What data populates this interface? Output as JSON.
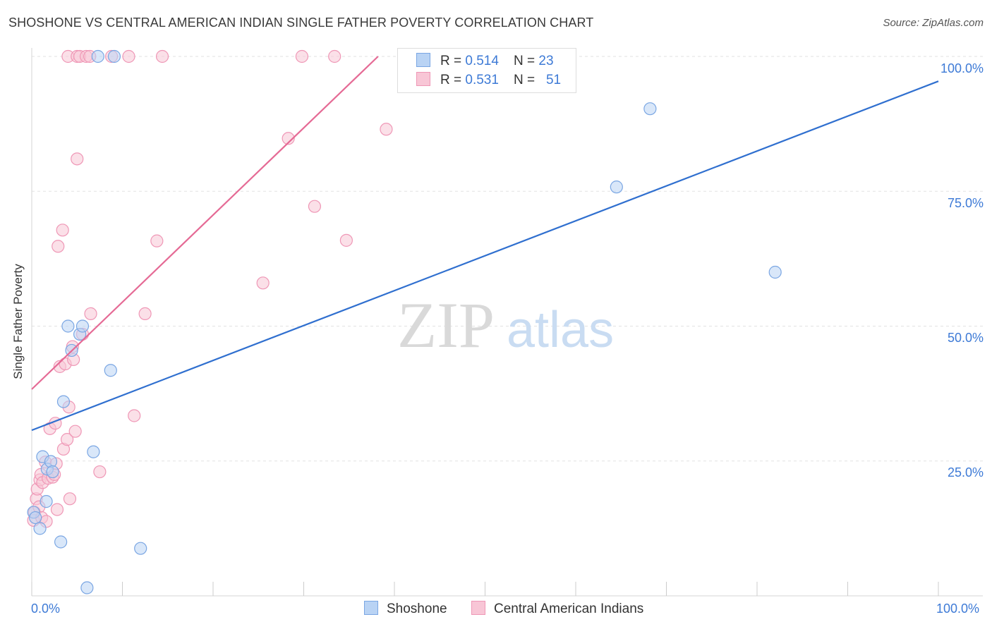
{
  "header": {
    "title": "SHOSHONE VS CENTRAL AMERICAN INDIAN SINGLE FATHER POVERTY CORRELATION CHART",
    "source": "Source: ZipAtlas.com"
  },
  "watermark": {
    "zip": "ZIP",
    "atlas": "atlas"
  },
  "legend": {
    "rows": [
      {
        "r_label": "R = ",
        "r_value": "0.514",
        "n_label": "N = ",
        "n_value": "23"
      },
      {
        "r_label": "R = ",
        "r_value": "0.531",
        "n_label": "N = ",
        "n_value": "51"
      }
    ]
  },
  "colors": {
    "shoshone_fill": "#b9d3f4",
    "shoshone_stroke": "#7aa6e3",
    "shoshone_line": "#2f6fcf",
    "cai_fill": "#f8c6d6",
    "cai_stroke": "#ef97b6",
    "cai_line": "#e56a95",
    "axis_text": "#3d7ad6",
    "grid": "#e2e2e2"
  },
  "chart_data": {
    "type": "scatter",
    "title": "SHOSHONE VS CENTRAL AMERICAN INDIAN SINGLE FATHER POVERTY CORRELATION CHART",
    "xlabel": "",
    "ylabel": "Single Father Poverty",
    "xlim": [
      0,
      100
    ],
    "ylim": [
      0,
      100
    ],
    "x_tick_labels": [
      "0.0%",
      "100.0%"
    ],
    "y_tick_labels": [
      "25.0%",
      "50.0%",
      "75.0%",
      "100.0%"
    ],
    "y_ticks": [
      25,
      50,
      75,
      100
    ],
    "grid": true,
    "legend_placement": "top-center",
    "series": [
      {
        "name": "Shoshone",
        "r": 0.514,
        "n": 23,
        "points": [
          [
            0.2,
            15.5
          ],
          [
            0.4,
            14.5
          ],
          [
            0.9,
            12.5
          ],
          [
            1.2,
            25.8
          ],
          [
            1.6,
            17.5
          ],
          [
            1.7,
            23.5
          ],
          [
            2.1,
            24.9
          ],
          [
            2.3,
            23.0
          ],
          [
            3.2,
            10.0
          ],
          [
            3.5,
            36.0
          ],
          [
            4.0,
            50.0
          ],
          [
            4.4,
            45.5
          ],
          [
            5.3,
            48.5
          ],
          [
            5.6,
            50.0
          ],
          [
            6.1,
            1.5
          ],
          [
            6.8,
            26.7
          ],
          [
            7.3,
            100.0
          ],
          [
            8.7,
            41.8
          ],
          [
            9.1,
            100.0
          ],
          [
            12.0,
            8.8
          ],
          [
            64.5,
            75.8
          ],
          [
            68.2,
            90.3
          ],
          [
            82.0,
            60.0
          ]
        ],
        "trend": {
          "x": [
            0,
            100
          ],
          "y": [
            30.7,
            95.4
          ]
        }
      },
      {
        "name": "Central American Indians",
        "r": 0.531,
        "n": 51,
        "points": [
          [
            0.2,
            14.0
          ],
          [
            0.3,
            15.5
          ],
          [
            0.5,
            18.0
          ],
          [
            0.6,
            19.8
          ],
          [
            0.8,
            16.5
          ],
          [
            0.9,
            21.5
          ],
          [
            1.0,
            22.5
          ],
          [
            1.1,
            14.5
          ],
          [
            1.2,
            21.0
          ],
          [
            1.5,
            24.8
          ],
          [
            1.6,
            13.8
          ],
          [
            1.8,
            21.8
          ],
          [
            2.0,
            31.0
          ],
          [
            2.3,
            22.0
          ],
          [
            2.5,
            22.5
          ],
          [
            2.6,
            32.0
          ],
          [
            2.7,
            24.5
          ],
          [
            2.8,
            16.0
          ],
          [
            2.9,
            64.8
          ],
          [
            3.1,
            42.5
          ],
          [
            3.4,
            67.8
          ],
          [
            3.5,
            27.2
          ],
          [
            3.7,
            43.0
          ],
          [
            3.9,
            29.0
          ],
          [
            4.1,
            35.0
          ],
          [
            4.2,
            18.0
          ],
          [
            4.5,
            46.2
          ],
          [
            4.6,
            43.8
          ],
          [
            4.8,
            30.5
          ],
          [
            5.0,
            81.0
          ],
          [
            5.6,
            48.5
          ],
          [
            6.5,
            52.3
          ],
          [
            7.5,
            23.0
          ],
          [
            11.3,
            33.4
          ],
          [
            12.5,
            52.3
          ],
          [
            13.8,
            65.8
          ],
          [
            25.5,
            58.0
          ],
          [
            28.3,
            84.8
          ],
          [
            31.2,
            72.2
          ],
          [
            34.7,
            65.9
          ],
          [
            39.1,
            86.5
          ],
          [
            4.0,
            100.0
          ],
          [
            5.0,
            100.0
          ],
          [
            5.3,
            100.0
          ],
          [
            6.0,
            100.0
          ],
          [
            6.4,
            100.0
          ],
          [
            8.8,
            100.0
          ],
          [
            10.7,
            100.0
          ],
          [
            14.4,
            100.0
          ],
          [
            29.8,
            100.0
          ],
          [
            33.4,
            100.0
          ]
        ],
        "trend": {
          "x": [
            0,
            38.2
          ],
          "y": [
            38.3,
            100.0
          ]
        }
      }
    ]
  }
}
